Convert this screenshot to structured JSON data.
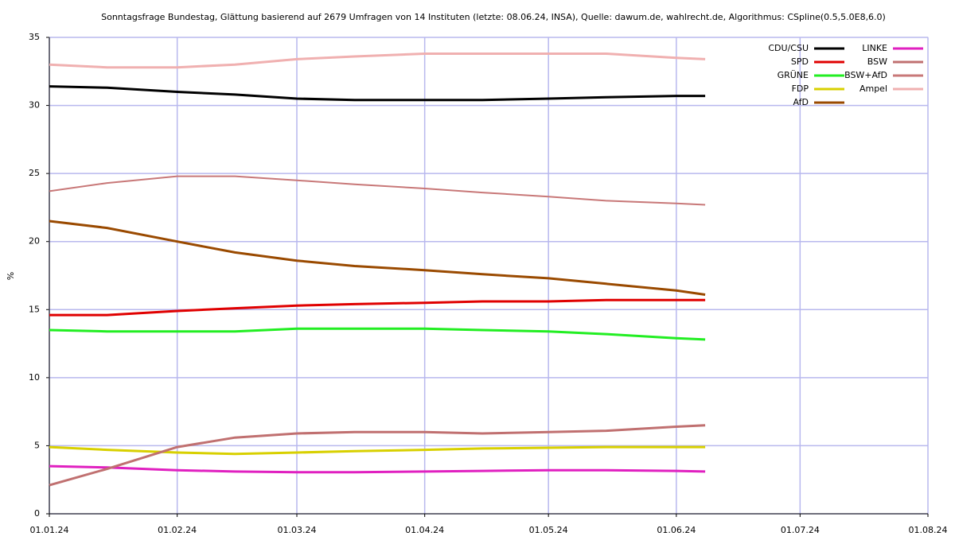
{
  "chart_data": {
    "type": "line",
    "title": "Sonntagsfrage Bundestag, Glättung basierend auf 2679 Umfragen von 14 Instituten (letzte: 08.06.24, INSA), Quelle: dawum.de, wahlrecht.de, Algorithmus: CSpline(0.5,5.0E8,6.0)",
    "y_label": "%",
    "x": [
      "2024-01-01",
      "2024-01-15",
      "2024-02-01",
      "2024-02-15",
      "2024-03-01",
      "2024-03-15",
      "2024-04-01",
      "2024-04-15",
      "2024-05-01",
      "2024-05-15",
      "2024-06-01",
      "2024-06-08"
    ],
    "xlim": [
      "2024-01-01",
      "2024-08-01"
    ],
    "xticks": [
      {
        "value": "2024-01-01",
        "label": "01.01.24"
      },
      {
        "value": "2024-02-01",
        "label": "01.02.24"
      },
      {
        "value": "2024-03-01",
        "label": "01.03.24"
      },
      {
        "value": "2024-04-01",
        "label": "01.04.24"
      },
      {
        "value": "2024-05-01",
        "label": "01.05.24"
      },
      {
        "value": "2024-06-01",
        "label": "01.06.24"
      },
      {
        "value": "2024-07-01",
        "label": "01.07.24"
      },
      {
        "value": "2024-08-01",
        "label": "01.08.24"
      }
    ],
    "ylim": [
      0,
      35
    ],
    "yticks": [
      0,
      5,
      10,
      15,
      20,
      25,
      30,
      35
    ],
    "grid": true,
    "legend": "top-right",
    "series": [
      {
        "name": "CDU/CSU",
        "color": "#000000",
        "values": [
          31.4,
          31.3,
          31.0,
          30.8,
          30.5,
          30.4,
          30.4,
          30.4,
          30.5,
          30.6,
          30.7,
          30.7
        ]
      },
      {
        "name": "SPD",
        "color": "#e00000",
        "values": [
          14.6,
          14.6,
          14.9,
          15.1,
          15.3,
          15.4,
          15.5,
          15.6,
          15.6,
          15.7,
          15.7,
          15.7
        ]
      },
      {
        "name": "GRÜNE",
        "color": "#22ee22",
        "values": [
          13.5,
          13.4,
          13.4,
          13.4,
          13.6,
          13.6,
          13.6,
          13.5,
          13.4,
          13.2,
          12.9,
          12.8
        ]
      },
      {
        "name": "FDP",
        "color": "#d8d000",
        "values": [
          4.9,
          4.7,
          4.5,
          4.4,
          4.5,
          4.6,
          4.7,
          4.8,
          4.85,
          4.9,
          4.9,
          4.9
        ]
      },
      {
        "name": "AfD",
        "color": "#9a4a00",
        "values": [
          21.5,
          21.0,
          20.0,
          19.2,
          18.6,
          18.2,
          17.9,
          17.6,
          17.3,
          16.9,
          16.4,
          16.1
        ]
      },
      {
        "name": "LINKE",
        "color": "#e020c0",
        "values": [
          3.5,
          3.4,
          3.2,
          3.1,
          3.05,
          3.05,
          3.1,
          3.15,
          3.2,
          3.2,
          3.15,
          3.1
        ]
      },
      {
        "name": "BSW",
        "color": "#c07070",
        "values": [
          2.1,
          3.3,
          4.9,
          5.6,
          5.9,
          6.0,
          6.0,
          5.9,
          6.0,
          6.1,
          6.4,
          6.5
        ]
      },
      {
        "name": "BSW+AfD",
        "color": "#c87878",
        "values": [
          23.7,
          24.3,
          24.8,
          24.8,
          24.5,
          24.2,
          23.9,
          23.6,
          23.3,
          23.0,
          22.8,
          22.7
        ]
      },
      {
        "name": "Ampel",
        "color": "#f0b0b0",
        "values": [
          33.0,
          32.8,
          32.8,
          33.0,
          33.4,
          33.6,
          33.8,
          33.8,
          33.8,
          33.8,
          33.5,
          33.4
        ]
      }
    ]
  }
}
